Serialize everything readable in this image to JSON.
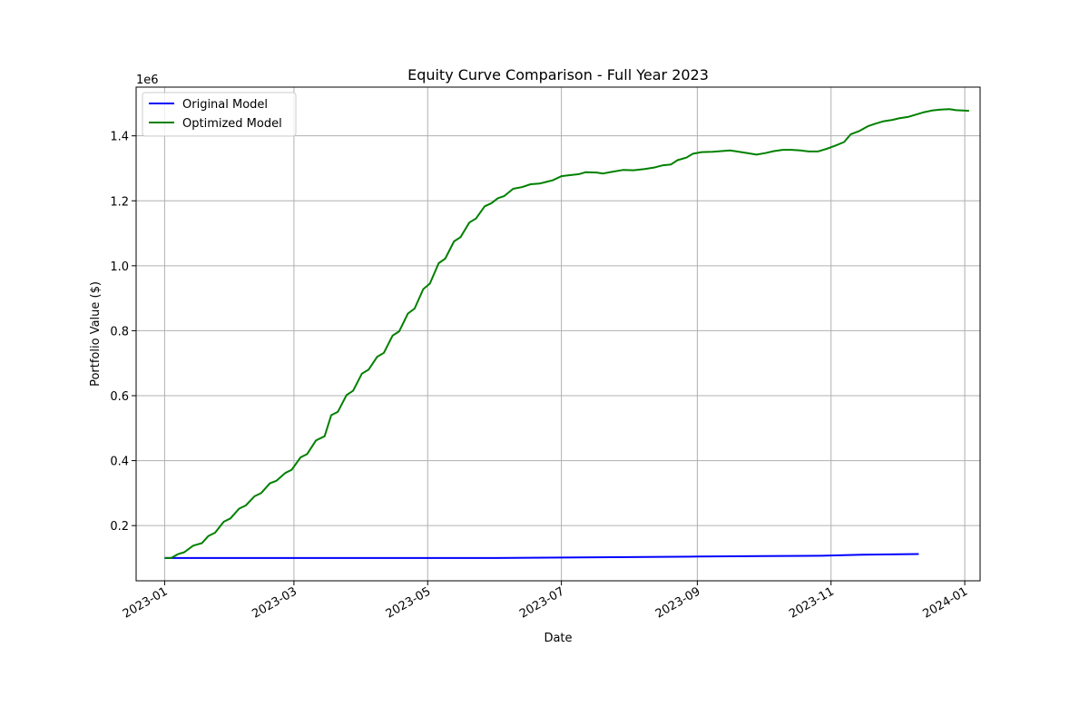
{
  "chart_data": {
    "type": "line",
    "title": "Equity Curve Comparison - Full Year 2023",
    "xlabel": "Date",
    "ylabel": "Portfolio Value ($)",
    "y_offset_label": "1e6",
    "x_range": [
      "2022-12-19",
      "2024-01-08"
    ],
    "y_range": [
      30000,
      1550000
    ],
    "x_ticks": [
      "2023-01-01",
      "2023-03-01",
      "2023-05-01",
      "2023-07-01",
      "2023-09-01",
      "2023-11-01",
      "2024-01-01"
    ],
    "x_tick_labels": [
      "2023-01",
      "2023-03",
      "2023-05",
      "2023-07",
      "2023-09",
      "2023-11",
      "2024-01"
    ],
    "y_ticks": [
      200000,
      400000,
      600000,
      800000,
      1000000,
      1200000,
      1400000
    ],
    "y_tick_labels": [
      "0.2",
      "0.4",
      "0.6",
      "0.8",
      "1.0",
      "1.2",
      "1.4"
    ],
    "grid": true,
    "legend_position": "upper-left",
    "series": [
      {
        "name": "Original Model",
        "color": "#0000ff",
        "points": [
          [
            "2023-01-01",
            100000
          ],
          [
            "2023-02-01",
            100000
          ],
          [
            "2023-03-01",
            100000
          ],
          [
            "2023-04-01",
            100000
          ],
          [
            "2023-05-01",
            100000
          ],
          [
            "2023-06-01",
            100000
          ],
          [
            "2023-07-01",
            101500
          ],
          [
            "2023-08-01",
            103000
          ],
          [
            "2023-09-01",
            104500
          ],
          [
            "2023-10-01",
            106000
          ],
          [
            "2023-10-28",
            107000
          ],
          [
            "2023-11-15",
            110500
          ],
          [
            "2023-12-11",
            112500
          ]
        ]
      },
      {
        "name": "Optimized Model",
        "color": "#008000",
        "points": [
          [
            "2023-01-01",
            100000
          ],
          [
            "2023-01-04",
            100000
          ],
          [
            "2023-01-07",
            112000
          ],
          [
            "2023-01-10",
            118000
          ],
          [
            "2023-01-14",
            138000
          ],
          [
            "2023-01-18",
            146000
          ],
          [
            "2023-01-21",
            168000
          ],
          [
            "2023-01-24",
            178000
          ],
          [
            "2023-01-28",
            212000
          ],
          [
            "2023-01-31",
            222000
          ],
          [
            "2023-02-04",
            252000
          ],
          [
            "2023-02-07",
            262000
          ],
          [
            "2023-02-11",
            290000
          ],
          [
            "2023-02-14",
            300000
          ],
          [
            "2023-02-18",
            330000
          ],
          [
            "2023-02-21",
            338000
          ],
          [
            "2023-02-25",
            362000
          ],
          [
            "2023-02-28",
            372000
          ],
          [
            "2023-03-04",
            410000
          ],
          [
            "2023-03-07",
            420000
          ],
          [
            "2023-03-11",
            462000
          ],
          [
            "2023-03-15",
            475000
          ],
          [
            "2023-03-18",
            540000
          ],
          [
            "2023-03-21",
            550000
          ],
          [
            "2023-03-25",
            602000
          ],
          [
            "2023-03-28",
            615000
          ],
          [
            "2023-04-01",
            668000
          ],
          [
            "2023-04-04",
            680000
          ],
          [
            "2023-04-08",
            720000
          ],
          [
            "2023-04-11",
            732000
          ],
          [
            "2023-04-15",
            785000
          ],
          [
            "2023-04-18",
            798000
          ],
          [
            "2023-04-22",
            853000
          ],
          [
            "2023-04-25",
            868000
          ],
          [
            "2023-04-29",
            928000
          ],
          [
            "2023-05-02",
            945000
          ],
          [
            "2023-05-06",
            1008000
          ],
          [
            "2023-05-09",
            1022000
          ],
          [
            "2023-05-13",
            1075000
          ],
          [
            "2023-05-16",
            1088000
          ],
          [
            "2023-05-20",
            1133000
          ],
          [
            "2023-05-23",
            1145000
          ],
          [
            "2023-05-27",
            1183000
          ],
          [
            "2023-05-30",
            1192000
          ],
          [
            "2023-06-02",
            1208000
          ],
          [
            "2023-06-05",
            1215000
          ],
          [
            "2023-06-09",
            1237000
          ],
          [
            "2023-06-13",
            1242000
          ],
          [
            "2023-06-17",
            1251000
          ],
          [
            "2023-06-21",
            1253000
          ],
          [
            "2023-06-24",
            1258000
          ],
          [
            "2023-06-27",
            1263000
          ],
          [
            "2023-07-01",
            1276000
          ],
          [
            "2023-07-04",
            1278000
          ],
          [
            "2023-07-09",
            1282000
          ],
          [
            "2023-07-12",
            1288000
          ],
          [
            "2023-07-17",
            1287000
          ],
          [
            "2023-07-20",
            1284000
          ],
          [
            "2023-07-24",
            1289000
          ],
          [
            "2023-07-29",
            1295000
          ],
          [
            "2023-08-03",
            1294000
          ],
          [
            "2023-08-08",
            1298000
          ],
          [
            "2023-08-12",
            1302000
          ],
          [
            "2023-08-16",
            1309000
          ],
          [
            "2023-08-20",
            1312000
          ],
          [
            "2023-08-23",
            1325000
          ],
          [
            "2023-08-27",
            1333000
          ],
          [
            "2023-08-30",
            1345000
          ],
          [
            "2023-09-03",
            1350000
          ],
          [
            "2023-09-08",
            1351000
          ],
          [
            "2023-09-12",
            1353000
          ],
          [
            "2023-09-16",
            1355000
          ],
          [
            "2023-09-20",
            1351000
          ],
          [
            "2023-09-24",
            1347000
          ],
          [
            "2023-09-28",
            1342000
          ],
          [
            "2023-10-02",
            1347000
          ],
          [
            "2023-10-06",
            1353000
          ],
          [
            "2023-10-10",
            1357000
          ],
          [
            "2023-10-14",
            1357000
          ],
          [
            "2023-10-18",
            1355000
          ],
          [
            "2023-10-22",
            1352000
          ],
          [
            "2023-10-26",
            1352000
          ],
          [
            "2023-10-30",
            1360000
          ],
          [
            "2023-11-03",
            1370000
          ],
          [
            "2023-11-07",
            1381000
          ],
          [
            "2023-11-10",
            1405000
          ],
          [
            "2023-11-14",
            1415000
          ],
          [
            "2023-11-18",
            1430000
          ],
          [
            "2023-11-21",
            1437000
          ],
          [
            "2023-11-25",
            1445000
          ],
          [
            "2023-11-29",
            1449000
          ],
          [
            "2023-12-02",
            1454000
          ],
          [
            "2023-12-06",
            1458000
          ],
          [
            "2023-12-09",
            1464000
          ],
          [
            "2023-12-13",
            1472000
          ],
          [
            "2023-12-17",
            1478000
          ],
          [
            "2023-12-21",
            1481000
          ],
          [
            "2023-12-25",
            1482000
          ],
          [
            "2023-12-28",
            1479000
          ],
          [
            "2024-01-03",
            1477000
          ]
        ]
      }
    ]
  }
}
